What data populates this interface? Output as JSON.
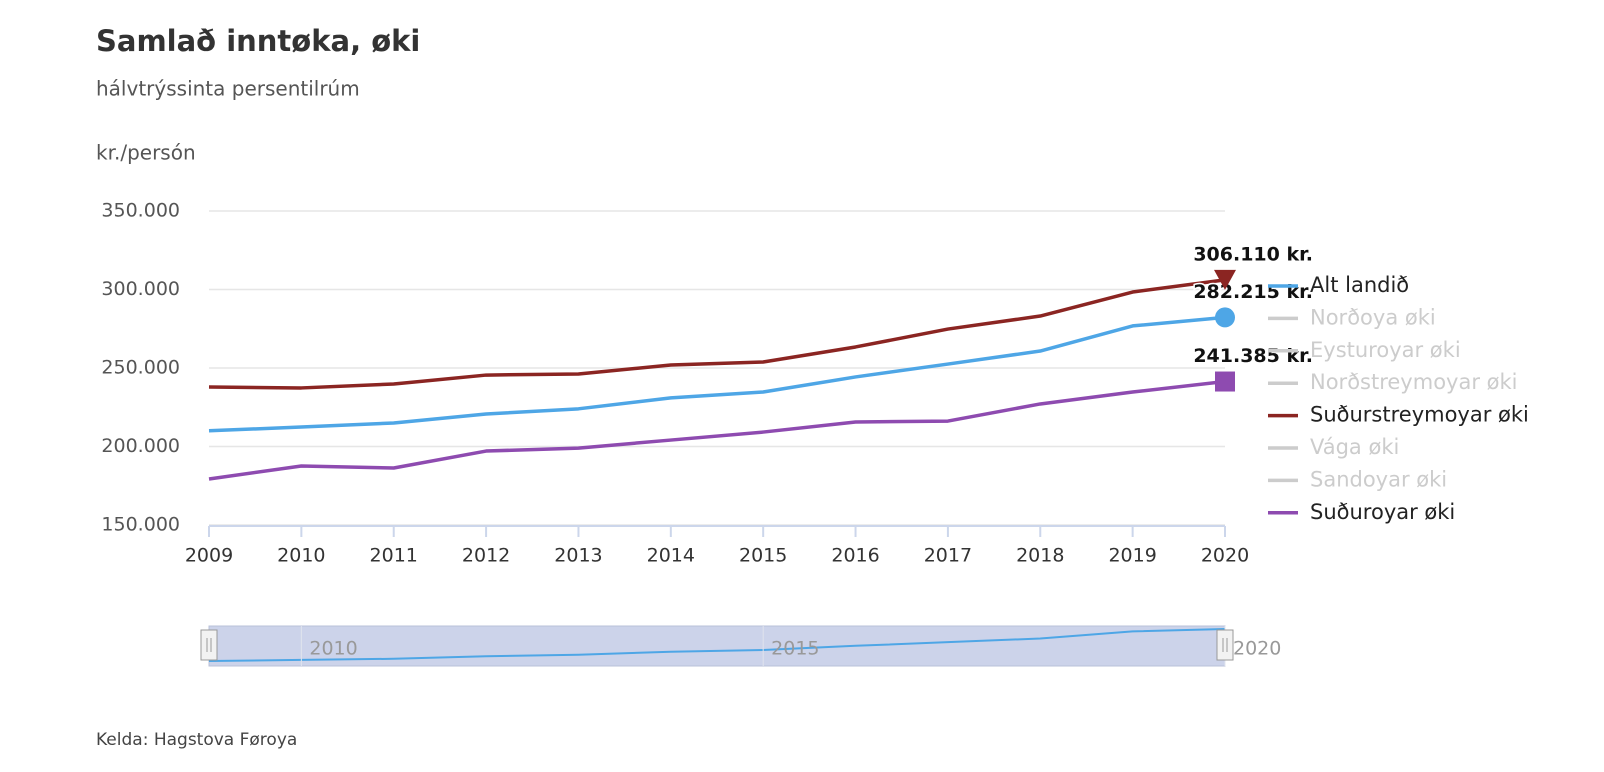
{
  "chart_data": {
    "type": "line",
    "title": "Samlað inntøka, øki",
    "subtitle": "hálvtrýssinta persentilrúm",
    "y_label": "kr./persón",
    "source": "Kelda: Hagstova Føroya",
    "x": [
      2009,
      2010,
      2011,
      2012,
      2013,
      2014,
      2015,
      2016,
      2017,
      2018,
      2019,
      2020
    ],
    "xlim": [
      2009,
      2020
    ],
    "ylim": [
      150000,
      350000
    ],
    "yticks": [
      {
        "value": 150000,
        "label": "150.000"
      },
      {
        "value": 200000,
        "label": "200.000"
      },
      {
        "value": 250000,
        "label": "250.000"
      },
      {
        "value": 300000,
        "label": "300.000"
      },
      {
        "value": 350000,
        "label": "350.000"
      }
    ],
    "grid": true,
    "legend": "right",
    "navigator_ticks": [
      2010,
      2015,
      2020
    ],
    "series": [
      {
        "name": "Alt landið",
        "color": "#4ea6e6",
        "visible": true,
        "marker": "circle",
        "values": [
          210000,
          212400,
          215000,
          220700,
          224000,
          231000,
          234700,
          244300,
          252500,
          260800,
          276800,
          282215
        ],
        "value_labels": [
          null,
          null,
          null,
          null,
          null,
          null,
          null,
          null,
          null,
          null,
          null,
          "282.215 kr."
        ]
      },
      {
        "name": "Norðoya øki",
        "color": "#cccccc",
        "visible": false,
        "values": [
          null,
          null,
          null,
          null,
          null,
          null,
          null,
          null,
          null,
          null,
          null,
          null
        ]
      },
      {
        "name": "Eysturoyar øki",
        "color": "#cccccc",
        "visible": false,
        "values": [
          null,
          null,
          null,
          null,
          null,
          null,
          null,
          null,
          null,
          null,
          null,
          null
        ]
      },
      {
        "name": "Norðstreymoyar øki",
        "color": "#cccccc",
        "visible": false,
        "values": [
          null,
          null,
          null,
          null,
          null,
          null,
          null,
          null,
          null,
          null,
          null,
          null
        ]
      },
      {
        "name": "Suðurstreymoyar øki",
        "color": "#8b2522",
        "visible": true,
        "marker": "triangle-down",
        "values": [
          237900,
          237300,
          239800,
          245500,
          246200,
          251900,
          253800,
          263400,
          274800,
          283100,
          298400,
          306110
        ],
        "value_labels": [
          null,
          null,
          null,
          null,
          null,
          null,
          null,
          null,
          null,
          null,
          null,
          "306.110 kr."
        ]
      },
      {
        "name": "Vága øki",
        "color": "#cccccc",
        "visible": false,
        "values": [
          null,
          null,
          null,
          null,
          null,
          null,
          null,
          null,
          null,
          null,
          null,
          null
        ]
      },
      {
        "name": "Sandoyar øki",
        "color": "#cccccc",
        "visible": false,
        "values": [
          null,
          null,
          null,
          null,
          null,
          null,
          null,
          null,
          null,
          null,
          null,
          null
        ]
      },
      {
        "name": "Suðuroyar øki",
        "color": "#8e4bb0",
        "visible": true,
        "marker": "square",
        "values": [
          179300,
          187600,
          186300,
          197100,
          199000,
          204100,
          209200,
          215600,
          216200,
          227100,
          234700,
          241385
        ],
        "value_labels": [
          null,
          null,
          null,
          null,
          null,
          null,
          null,
          null,
          null,
          null,
          null,
          "241.385 kr."
        ]
      }
    ]
  }
}
